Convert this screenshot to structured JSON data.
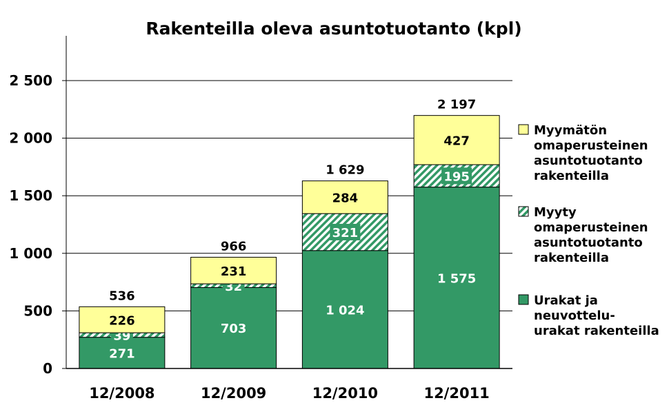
{
  "chart_data": {
    "type": "bar",
    "stacked": true,
    "title": "Rakenteilla oleva asuntotuotanto (kpl)",
    "categories": [
      "12/2008",
      "12/2009",
      "12/2010",
      "12/2011"
    ],
    "series": [
      {
        "name": "Urakat ja neuvottelu-urakat rakenteilla",
        "legend_lines": [
          "Urakat ja",
          "neuvottelu-",
          "urakat rakenteilla"
        ],
        "values": [
          271,
          703,
          1024,
          1575
        ],
        "labels": [
          "271",
          "703",
          "1 024",
          "1 575"
        ],
        "color": "#339966",
        "pattern": "solid"
      },
      {
        "name": "Myyty omaperusteinen asuntotuotanto rakenteilla",
        "legend_lines": [
          "Myyty",
          "omaperusteinen",
          "asuntotuotanto",
          "rakenteilla"
        ],
        "values": [
          39,
          32,
          321,
          195
        ],
        "labels": [
          "39",
          "32",
          "321",
          "195"
        ],
        "color": "#339966",
        "pattern": "hatched"
      },
      {
        "name": "Myymätön omaperusteinen asuntotuotanto rakenteilla",
        "legend_lines": [
          "Myymätön",
          "omaperusteinen",
          "asuntotuotanto",
          "rakenteilla"
        ],
        "values": [
          226,
          231,
          284,
          427
        ],
        "labels": [
          "226",
          "231",
          "284",
          "427"
        ],
        "color": "#ffff99",
        "pattern": "solid"
      }
    ],
    "totals": [
      536,
      966,
      1629,
      2197
    ],
    "total_labels": [
      "536",
      "966",
      "1 629",
      "2 197"
    ],
    "ylim": [
      0,
      2500
    ],
    "yticks": [
      0,
      500,
      1000,
      1500,
      2000,
      2500
    ],
    "ytick_labels": [
      "0",
      "500",
      "1 000",
      "1 500",
      "2 000",
      "2 500"
    ],
    "grid": true,
    "legend_position": "right"
  }
}
